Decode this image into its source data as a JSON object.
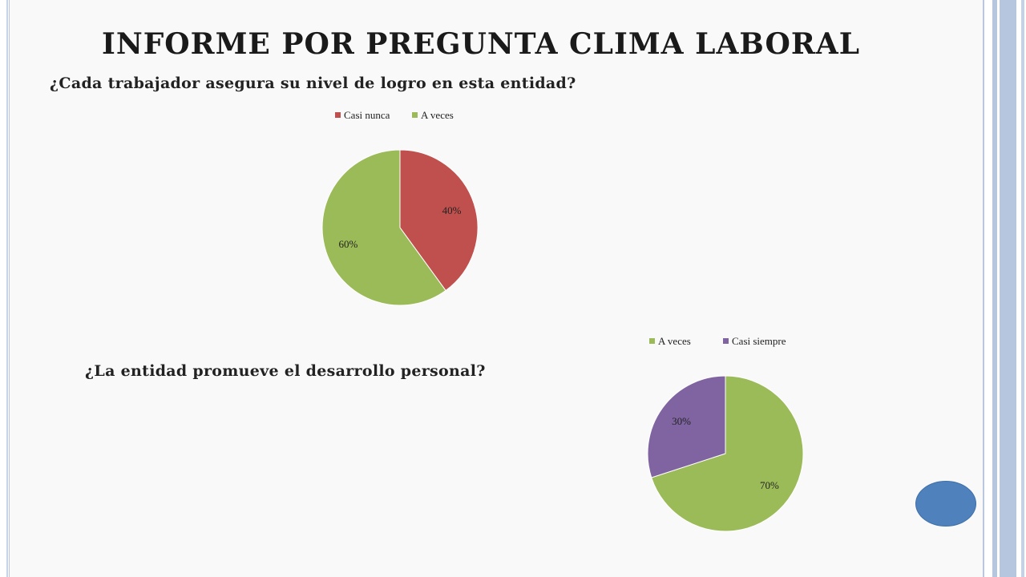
{
  "slide": {
    "title": "INFORME POR PREGUNTA CLIMA LABORAL",
    "question_1": "¿Cada trabajador asegura su nivel de logro en esta entidad?",
    "question_2": "¿La entidad promueve el desarrollo personal?"
  },
  "colors": {
    "casi_nunca": "#c0504d",
    "a_veces": "#9bbb59",
    "casi_siempre": "#8064a2",
    "button": "#4f81bd"
  },
  "chart_data": [
    {
      "type": "pie",
      "title": "",
      "legend_position": "top",
      "slices": [
        {
          "name": "Casi nunca",
          "value": 40,
          "label": "40%",
          "color": "#c0504d"
        },
        {
          "name": "A veces",
          "value": 60,
          "label": "60%",
          "color": "#9bbb59"
        }
      ]
    },
    {
      "type": "pie",
      "title": "",
      "legend_position": "top",
      "slices": [
        {
          "name": "A veces",
          "value": 70,
          "label": "70%",
          "color": "#9bbb59"
        },
        {
          "name": "Casi siempre",
          "value": 30,
          "label": "30%",
          "color": "#8064a2"
        }
      ]
    }
  ]
}
